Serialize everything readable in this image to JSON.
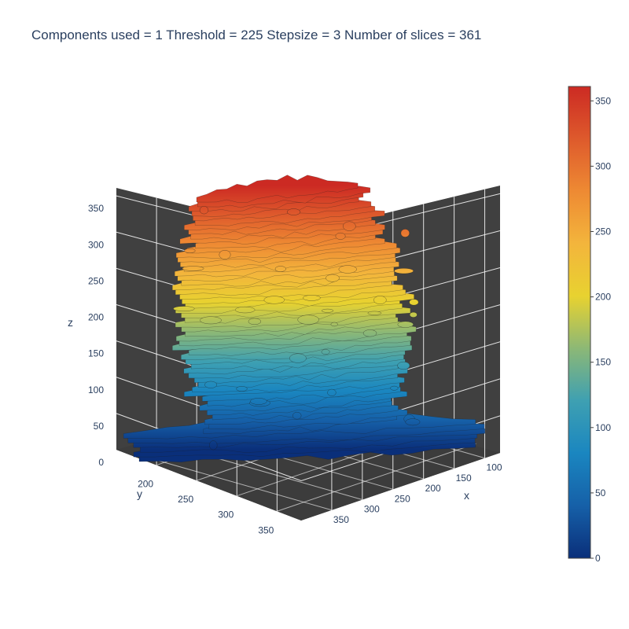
{
  "chart_data": {
    "type": "3d-mesh",
    "title": "Components used = 1 Threshold = 225 Stepsize = 3 Number of slices = 361",
    "axes": {
      "x": {
        "label": "x",
        "ticks": [
          100,
          150,
          200,
          250,
          300,
          350
        ]
      },
      "y": {
        "label": "y",
        "ticks": [
          200,
          250,
          300,
          350
        ]
      },
      "z": {
        "label": "z",
        "ticks": [
          0,
          50,
          100,
          150,
          200,
          250,
          300,
          350
        ],
        "range": [
          0,
          361
        ]
      }
    },
    "colorbar": {
      "range": [
        0,
        361
      ],
      "ticks": [
        0,
        50,
        100,
        150,
        200,
        250,
        300,
        350
      ],
      "colorscale": [
        "#0a2f7a",
        "#1660a8",
        "#1a86c0",
        "#3ea0b2",
        "#8cb876",
        "#e8d230",
        "#f3b53c",
        "#ee8a33",
        "#de5a2c",
        "#cc2a23"
      ]
    },
    "scene": {
      "background": "#404040",
      "grid": true,
      "gridcolor": "#ffffff"
    }
  }
}
